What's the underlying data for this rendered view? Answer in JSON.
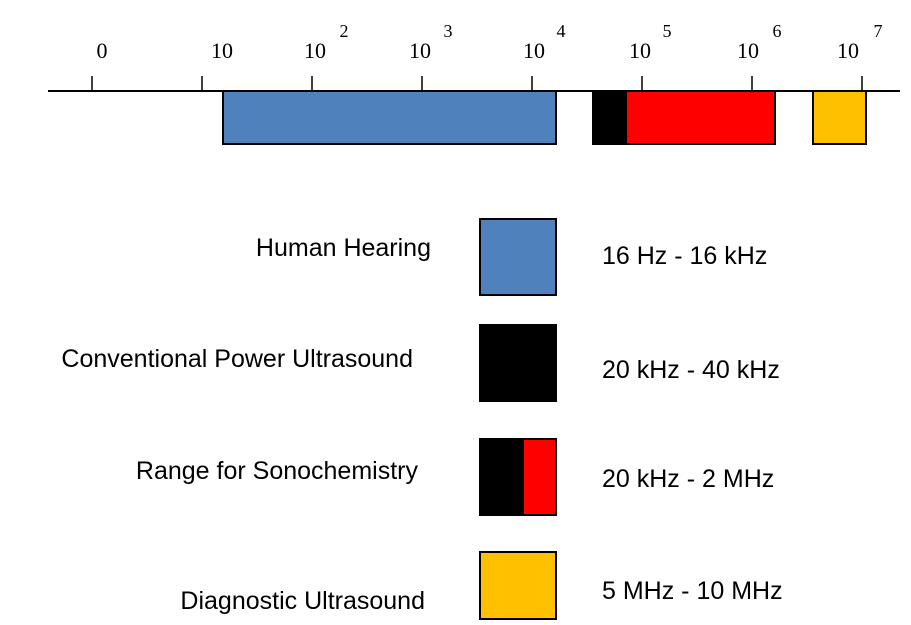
{
  "axis": {
    "scale": "log10 (Hz)",
    "ticks": [
      {
        "base": "0",
        "exp": ""
      },
      {
        "base": "10",
        "exp": ""
      },
      {
        "base": "10",
        "exp": "2"
      },
      {
        "base": "10",
        "exp": "3"
      },
      {
        "base": "10",
        "exp": "4"
      },
      {
        "base": "10",
        "exp": "5"
      },
      {
        "base": "10",
        "exp": "6"
      },
      {
        "base": "10",
        "exp": "7"
      }
    ]
  },
  "colors": {
    "human_hearing": "#4f81bd",
    "power_ultrasound": "#000000",
    "sonochemistry_upper": "#ff0000",
    "diagnostic": "#ffc000"
  },
  "bands": [
    {
      "label": "Human Hearing",
      "range": "16 Hz - 16 kHz",
      "from_hz": 16,
      "to_hz": 16000,
      "colors": [
        "#4f81bd"
      ]
    },
    {
      "label": "Conventional Power Ultrasound",
      "range": "20 kHz - 40 kHz",
      "from_hz": 20000,
      "to_hz": 40000,
      "colors": [
        "#000000"
      ]
    },
    {
      "label": "Range for Sonochemistry",
      "range": "20 kHz - 2 MHz",
      "from_hz": 20000,
      "to_hz": 2000000,
      "colors": [
        "#000000",
        "#ff0000"
      ]
    },
    {
      "label": "Diagnostic Ultrasound",
      "range": "5 MHz - 10 MHz",
      "from_hz": 5000000,
      "to_hz": 10000000,
      "colors": [
        "#ffc000"
      ]
    }
  ]
}
